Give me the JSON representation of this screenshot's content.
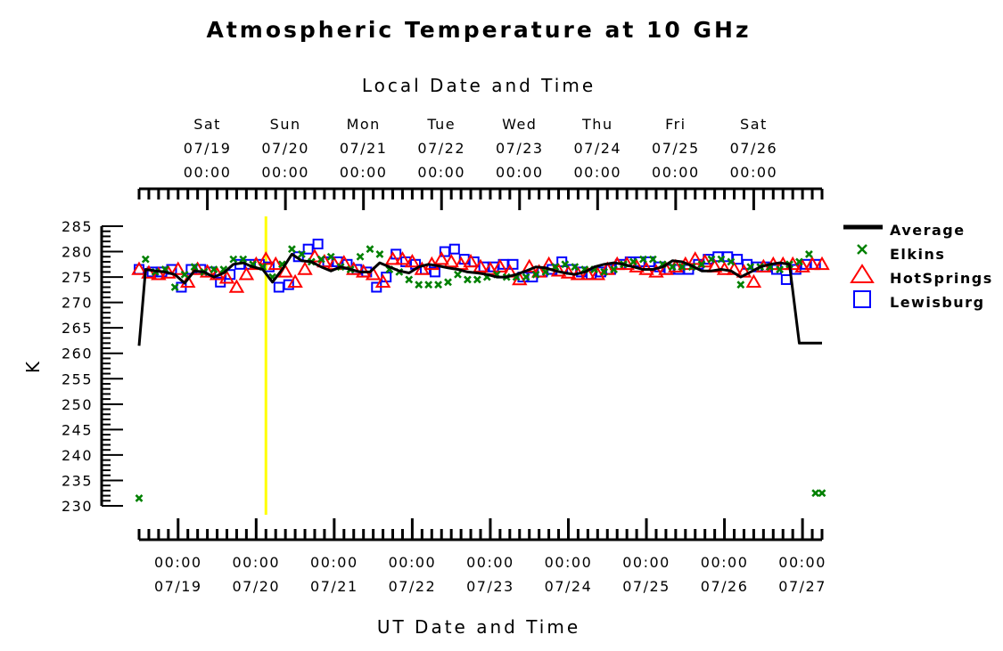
{
  "chart_data": {
    "type": "scatter",
    "title": "Atmospheric Temperature at 10 GHz",
    "top_axis_label": "Local Date and Time",
    "xlabel": "UT Date and Time",
    "ylabel": "K",
    "ylim": [
      230,
      285
    ],
    "y_ticks": [
      230,
      235,
      240,
      245,
      250,
      255,
      260,
      265,
      270,
      275,
      280,
      285
    ],
    "x_domain_hours": [
      0,
      210
    ],
    "bottom_ticks": [
      {
        "hour": 12,
        "time": "00:00",
        "date": "07/19"
      },
      {
        "hour": 36,
        "time": "00:00",
        "date": "07/20"
      },
      {
        "hour": 60,
        "time": "00:00",
        "date": "07/21"
      },
      {
        "hour": 84,
        "time": "00:00",
        "date": "07/22"
      },
      {
        "hour": 108,
        "time": "00:00",
        "date": "07/23"
      },
      {
        "hour": 132,
        "time": "00:00",
        "date": "07/24"
      },
      {
        "hour": 156,
        "time": "00:00",
        "date": "07/25"
      },
      {
        "hour": 180,
        "time": "00:00",
        "date": "07/26"
      },
      {
        "hour": 204,
        "time": "00:00",
        "date": "07/27"
      }
    ],
    "top_ticks": [
      {
        "hour": 21,
        "day": "Sat",
        "date": "07/19",
        "time": "00:00"
      },
      {
        "hour": 45,
        "day": "Sun",
        "date": "07/20",
        "time": "00:00"
      },
      {
        "hour": 69,
        "day": "Mon",
        "date": "07/21",
        "time": "00:00"
      },
      {
        "hour": 93,
        "day": "Tue",
        "date": "07/22",
        "time": "00:00"
      },
      {
        "hour": 117,
        "day": "Wed",
        "date": "07/23",
        "time": "00:00"
      },
      {
        "hour": 141,
        "day": "Thu",
        "date": "07/24",
        "time": "00:00"
      },
      {
        "hour": 165,
        "day": "Fri",
        "date": "07/25",
        "time": "00:00"
      },
      {
        "hour": 189,
        "day": "Sat",
        "date": "07/26",
        "time": "00:00"
      }
    ],
    "current_time_marker_hour": 39,
    "current_time_marker_color": "#ffff00",
    "legend": [
      {
        "name": "Average",
        "symbol": "line",
        "color": "#000000"
      },
      {
        "name": "Elkins",
        "symbol": "x",
        "color": "#008000"
      },
      {
        "name": "HotSprings",
        "symbol": "triangle",
        "color": "#ff0000"
      },
      {
        "name": "Lewisburg",
        "symbol": "square",
        "color": "#0000ff"
      }
    ],
    "series": [
      {
        "name": "Average",
        "x": [
          0,
          2,
          5,
          8,
          11,
          14,
          17,
          20,
          23,
          26,
          29,
          32,
          35,
          38,
          41,
          44,
          47,
          50,
          53,
          56,
          59,
          62,
          65,
          68,
          71,
          74,
          77,
          80,
          83,
          86,
          89,
          92,
          95,
          98,
          101,
          104,
          107,
          110,
          113,
          116,
          119,
          122,
          125,
          128,
          131,
          134,
          137,
          140,
          143,
          146,
          149,
          152,
          155,
          158,
          161,
          164,
          167,
          170,
          173,
          176,
          179,
          182,
          185,
          188,
          191,
          194,
          197,
          200,
          203,
          206,
          208,
          210
        ],
        "y": [
          261.5,
          276.5,
          276.2,
          276.0,
          275.5,
          273.8,
          276.2,
          276.0,
          275.0,
          275.8,
          277.5,
          277.8,
          277.0,
          276.5,
          274.0,
          276.5,
          279.5,
          278.2,
          278.0,
          277.0,
          276.2,
          277.0,
          276.5,
          276.0,
          276.0,
          277.8,
          277.0,
          276.2,
          275.8,
          277.0,
          277.5,
          277.2,
          276.8,
          276.5,
          276.0,
          275.8,
          275.5,
          275.0,
          275.0,
          275.5,
          276.2,
          277.0,
          276.8,
          276.2,
          275.8,
          275.5,
          276.0,
          277.0,
          277.5,
          277.8,
          277.5,
          277.0,
          276.5,
          276.5,
          277.0,
          278.2,
          278.0,
          277.2,
          276.2,
          276.2,
          276.5,
          276.2,
          275.0,
          276.0,
          277.0,
          277.5,
          277.8,
          277.5,
          262.0,
          262.0,
          262.0,
          262.0
        ]
      },
      {
        "name": "Elkins",
        "x": [
          0,
          2,
          5,
          8,
          11,
          14,
          17,
          20,
          23,
          26,
          29,
          32,
          35,
          38,
          41,
          44,
          47,
          50,
          53,
          56,
          59,
          62,
          65,
          68,
          71,
          74,
          77,
          80,
          83,
          86,
          89,
          92,
          95,
          98,
          101,
          104,
          107,
          110,
          113,
          116,
          119,
          122,
          125,
          128,
          131,
          134,
          137,
          140,
          143,
          146,
          149,
          152,
          155,
          158,
          161,
          164,
          167,
          170,
          173,
          176,
          179,
          182,
          185,
          188,
          191,
          194,
          197,
          200,
          203,
          206,
          208,
          210
        ],
        "y": [
          231.5,
          278.5,
          276.0,
          276.5,
          273.0,
          275.5,
          277.0,
          276.0,
          276.5,
          276.5,
          278.5,
          278.5,
          277.5,
          277.0,
          275.0,
          277.5,
          280.5,
          279.5,
          278.0,
          278.5,
          279.0,
          277.0,
          276.5,
          279.0,
          280.5,
          279.5,
          276.5,
          276.0,
          274.5,
          273.5,
          273.5,
          273.5,
          274.0,
          275.5,
          274.5,
          274.5,
          275.0,
          275.5,
          275.0,
          275.0,
          275.0,
          275.5,
          276.0,
          277.0,
          277.5,
          277.0,
          276.5,
          276.5,
          276.0,
          276.5,
          277.5,
          278.0,
          278.5,
          278.5,
          277.5,
          277.0,
          277.0,
          277.0,
          277.5,
          278.5,
          278.5,
          278.0,
          273.5,
          277.0,
          277.0,
          277.0,
          276.5,
          277.5,
          278.0,
          279.5,
          232.5,
          232.5
        ]
      },
      {
        "name": "HotSprings",
        "x": [
          0,
          3,
          6,
          9,
          12,
          15,
          18,
          21,
          24,
          27,
          30,
          33,
          36,
          39,
          42,
          45,
          48,
          51,
          54,
          57,
          60,
          63,
          66,
          69,
          72,
          75,
          78,
          81,
          84,
          87,
          90,
          93,
          96,
          99,
          102,
          105,
          108,
          111,
          114,
          117,
          120,
          123,
          126,
          129,
          132,
          135,
          138,
          141,
          144,
          147,
          150,
          153,
          156,
          159,
          162,
          165,
          168,
          171,
          174,
          177,
          180,
          183,
          186,
          189,
          192,
          195,
          198,
          201,
          204,
          207,
          210
        ],
        "y": [
          276.5,
          275.8,
          275.5,
          275.8,
          276.5,
          274.0,
          276.5,
          276.0,
          275.5,
          274.8,
          273.0,
          275.5,
          277.5,
          278.5,
          277.5,
          276.0,
          274.0,
          276.5,
          279.0,
          278.0,
          277.5,
          277.8,
          276.5,
          276.0,
          275.5,
          274.0,
          278.5,
          278.5,
          278.0,
          276.5,
          277.5,
          278.5,
          278.0,
          277.5,
          278.0,
          277.0,
          276.5,
          277.0,
          276.0,
          274.5,
          277.0,
          276.0,
          277.5,
          276.2,
          275.8,
          275.5,
          275.5,
          275.5,
          276.5,
          277.5,
          277.5,
          277.0,
          276.5,
          276.0,
          276.5,
          277.0,
          277.5,
          278.5,
          278.0,
          277.0,
          276.5,
          276.5,
          276.0,
          274.0,
          277.0,
          277.5,
          277.5,
          277.5,
          277.0,
          277.5,
          277.5
        ]
      },
      {
        "name": "Lewisburg",
        "x": [
          0,
          4,
          7,
          10,
          13,
          16,
          19,
          22,
          25,
          28,
          31,
          34,
          37,
          40,
          43,
          46,
          49,
          52,
          55,
          58,
          61,
          64,
          67,
          70,
          73,
          76,
          79,
          82,
          85,
          88,
          91,
          94,
          97,
          100,
          103,
          106,
          109,
          112,
          115,
          118,
          121,
          124,
          127,
          130,
          133,
          136,
          139,
          142,
          145,
          148,
          151,
          154,
          157,
          160,
          163,
          166,
          169,
          172,
          175,
          178,
          181,
          184,
          187,
          190,
          193,
          196,
          199,
          202,
          205,
          208
        ],
        "y": [
          276.5,
          276.0,
          276.0,
          276.5,
          273.0,
          276.5,
          276.5,
          276.0,
          274.0,
          275.5,
          277.5,
          277.5,
          277.5,
          277.0,
          273.0,
          273.5,
          279.0,
          280.5,
          281.5,
          278.0,
          278.0,
          277.5,
          276.5,
          276.0,
          273.0,
          275.0,
          279.5,
          278.0,
          277.5,
          276.5,
          276.0,
          280.0,
          280.5,
          278.5,
          278.0,
          277.0,
          277.0,
          277.5,
          277.5,
          275.0,
          275.0,
          276.0,
          276.5,
          278.0,
          276.5,
          276.0,
          275.5,
          276.0,
          276.5,
          277.5,
          278.0,
          278.0,
          278.0,
          277.0,
          276.5,
          276.5,
          276.5,
          277.5,
          278.5,
          279.0,
          279.0,
          278.5,
          277.5,
          277.0,
          277.0,
          276.5,
          274.5,
          276.5,
          277.5,
          277.5
        ]
      }
    ]
  }
}
